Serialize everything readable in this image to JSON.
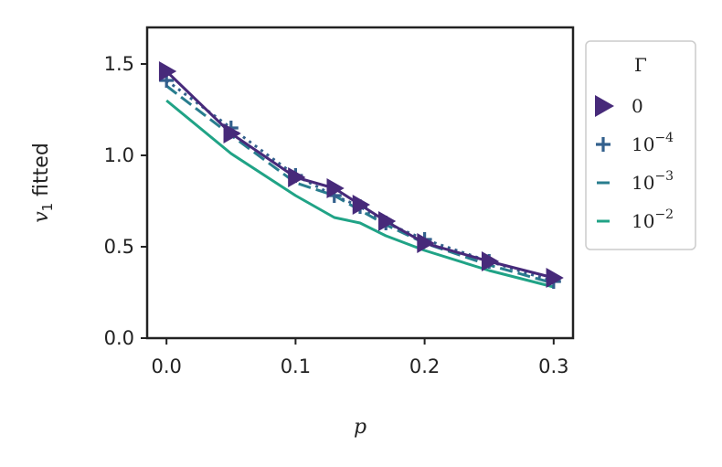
{
  "chart_data": {
    "type": "line",
    "xlabel": "p",
    "ylabel_prefix": "v",
    "ylabel_subscript": "1",
    "ylabel_suffix": " fitted",
    "xlim": [
      -0.015,
      0.315
    ],
    "ylim": [
      0,
      1.7
    ],
    "xticks": [
      0.0,
      0.1,
      0.2,
      0.3
    ],
    "xtick_labels": [
      "0.0",
      "0.1",
      "0.2",
      "0.3"
    ],
    "yticks": [
      0.0,
      0.5,
      1.0,
      1.5
    ],
    "ytick_labels": [
      "0.0",
      "0.5",
      "1.0",
      "1.5"
    ],
    "grid": false,
    "legend": {
      "title": "Γ",
      "placement": "outside-right",
      "entries": [
        {
          "base": "0",
          "exp": ""
        },
        {
          "base": "10",
          "exp": "−4"
        },
        {
          "base": "10",
          "exp": "−3"
        },
        {
          "base": "10",
          "exp": "−2"
        }
      ]
    },
    "x": [
      0.0,
      0.05,
      0.1,
      0.13,
      0.15,
      0.17,
      0.2,
      0.25,
      0.3
    ],
    "series": [
      {
        "values": [
          1.46,
          1.12,
          0.88,
          0.82,
          0.73,
          0.64,
          0.52,
          0.42,
          0.33
        ],
        "color": "#472a7a",
        "marker": "triangle-right",
        "dash": ""
      },
      {
        "values": [
          1.41,
          1.15,
          0.89,
          0.78,
          0.72,
          0.63,
          0.54,
          0.42,
          0.31
        ],
        "color": "#33608d",
        "marker": "plus",
        "dash": "3,5"
      },
      {
        "values": [
          1.38,
          1.11,
          0.85,
          0.78,
          0.7,
          0.62,
          0.52,
          0.4,
          0.3
        ],
        "color": "#287d8e",
        "marker": "",
        "dash": "14,6"
      },
      {
        "values": [
          1.3,
          1.01,
          0.78,
          0.66,
          0.63,
          0.56,
          0.48,
          0.37,
          0.28
        ],
        "color": "#20a386",
        "marker": "",
        "dash": ""
      }
    ]
  }
}
